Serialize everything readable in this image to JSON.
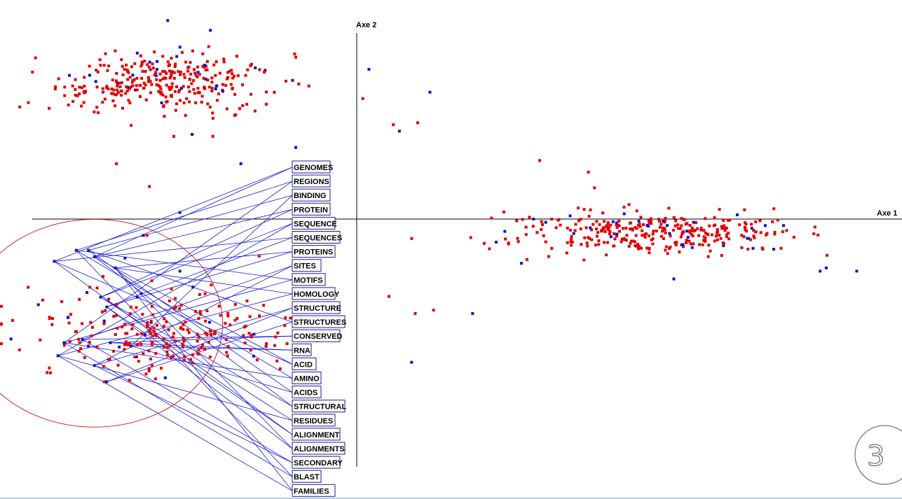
{
  "chart_data": {
    "type": "scatter",
    "title": "",
    "xlabel": "Axe 1",
    "ylabel": "Axe 2",
    "grid": false,
    "colors": {
      "document": "#e00000",
      "term": "#1010d0",
      "links": "#1a1ad6",
      "circle": "#d42020",
      "axis": "#000000",
      "label_border": "#1b1b9a"
    },
    "terms": [
      "GENOMES",
      "REGIONS",
      "BINDING",
      "PROTEIN",
      "SEQUENCE",
      "SEQUENCES",
      "PROTEINS",
      "SITES",
      "MOTIFS",
      "HOMOLOGY",
      "STRUCTURE",
      "STRUCTURES",
      "CONSERVED",
      "RNA",
      "ACID",
      "AMINO",
      "ACIDS",
      "STRUCTURAL",
      "RESIDUES",
      "ALIGNMENT",
      "ALIGNMENTS",
      "SECONDARY",
      "BLAST",
      "FAMILIES"
    ],
    "clusters": [
      {
        "name": "",
        "color": "#e00000",
        "center": [
          -1.55,
          2.1
        ],
        "spread": [
          0.45,
          0.22
        ],
        "count": 320,
        "seed": 11
      },
      {
        "name": "",
        "color": "#e00000",
        "center": [
          2.45,
          -0.22
        ],
        "spread": [
          0.55,
          0.16
        ],
        "count": 330,
        "seed": 23
      },
      {
        "name": "",
        "color": "#e00000",
        "center": [
          -1.55,
          -1.75
        ],
        "spread": [
          0.6,
          0.33
        ],
        "count": 230,
        "seed": 37
      }
    ],
    "outliers_red": [
      [
        -1.5,
        1.27
      ],
      [
        -1.18,
        1.27
      ],
      [
        -1.97,
        0.85
      ],
      [
        -1.7,
        0.5
      ],
      [
        -1.72,
        -0.25
      ],
      [
        -0.8,
        -0.57
      ],
      [
        0.05,
        1.85
      ],
      [
        0.3,
        1.45
      ],
      [
        0.5,
        1.48
      ],
      [
        0.48,
        -1.45
      ],
      [
        0.63,
        -1.4
      ],
      [
        1.5,
        0.9
      ],
      [
        1.55,
        -0.35
      ],
      [
        1.9,
        0.72
      ],
      [
        1.95,
        0.48
      ]
    ],
    "outliers_blue": [
      [
        -1.8,
        2.55
      ],
      [
        -1.55,
        3.05
      ],
      [
        -1.2,
        2.9
      ],
      [
        -1.35,
        1.3
      ],
      [
        -0.95,
        0.85
      ],
      [
        -0.5,
        1.1
      ],
      [
        0.1,
        2.3
      ],
      [
        0.35,
        1.35
      ],
      [
        0.6,
        1.95
      ],
      [
        -1.45,
        0.1
      ],
      [
        -1.75,
        -0.25
      ],
      [
        -1.45,
        -0.8
      ],
      [
        -1.9,
        -0.6
      ],
      [
        -2.2,
        -1.95
      ],
      [
        -1.8,
        -1.2
      ],
      [
        0.45,
        -2.2
      ],
      [
        0.95,
        -1.45
      ],
      [
        1.35,
        -0.68
      ],
      [
        1.45,
        0.0
      ],
      [
        1.55,
        -0.05
      ],
      [
        1.75,
        0.05
      ],
      [
        2.6,
        -0.92
      ],
      [
        3.25,
        -0.45
      ],
      [
        3.35,
        -0.1
      ],
      [
        3.5,
        -0.1
      ],
      [
        3.8,
        -0.8
      ],
      [
        3.85,
        -0.75
      ],
      [
        4.1,
        -0.8
      ]
    ],
    "term_points_blue": [
      [
        -2.48,
        -0.65
      ],
      [
        -2.3,
        -0.48
      ],
      [
        -2.2,
        -0.48
      ],
      [
        -2.15,
        -0.58
      ],
      [
        -2.1,
        -1.2
      ],
      [
        -2.05,
        -1.35
      ],
      [
        -1.98,
        -0.75
      ],
      [
        -2.25,
        -1.85
      ],
      [
        -2.4,
        -1.9
      ],
      [
        -2.45,
        -2.1
      ],
      [
        -2.15,
        -2.25
      ],
      [
        -2.05,
        -2.5
      ],
      [
        -2.02,
        -1.9
      ],
      [
        -1.85,
        -1.95
      ]
    ],
    "circle": {
      "center": [
        -2.15,
        -1.6
      ],
      "radius": 1.05
    }
  }
}
